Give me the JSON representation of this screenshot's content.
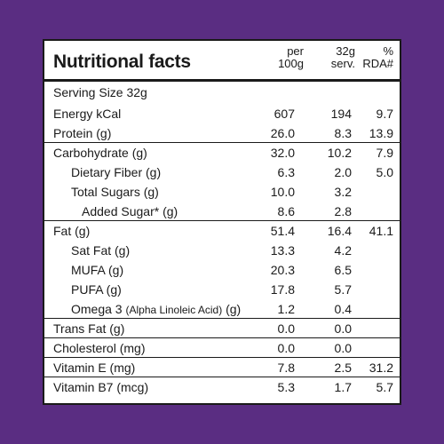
{
  "title": "Nutritional facts",
  "columns": {
    "per100g_line1": "per",
    "per100g_line2": "100g",
    "serving_line1": "32g",
    "serving_line2": "serv.",
    "rda_line1": "%",
    "rda_line2": "RDA#"
  },
  "serving_size": "Serving Size 32g",
  "rows": [
    {
      "label": "Energy kCal",
      "per100": "607",
      "serving": "194",
      "rda": "9.7"
    },
    {
      "label": "Protein (g)",
      "per100": "26.0",
      "serving": "8.3",
      "rda": "13.9"
    },
    {
      "label": "Carbohydrate (g)",
      "per100": "32.0",
      "serving": "10.2",
      "rda": "7.9"
    },
    {
      "label": "Dietary Fiber (g)",
      "per100": "6.3",
      "serving": "2.0",
      "rda": "5.0"
    },
    {
      "label": "Total Sugars (g)",
      "per100": "10.0",
      "serving": "3.2",
      "rda": ""
    },
    {
      "label": "Added Sugar* (g)",
      "per100": "8.6",
      "serving": "2.8",
      "rda": ""
    },
    {
      "label": "Fat (g)",
      "per100": "51.4",
      "serving": "16.4",
      "rda": "41.1"
    },
    {
      "label": "Sat Fat (g)",
      "per100": "13.3",
      "serving": "4.2",
      "rda": ""
    },
    {
      "label": "MUFA (g)",
      "per100": "20.3",
      "serving": "6.5",
      "rda": ""
    },
    {
      "label": "PUFA (g)",
      "per100": "17.8",
      "serving": "5.7",
      "rda": ""
    },
    {
      "label_main": "Omega 3 ",
      "label_sub": "(Alpha Linoleic Acid)",
      "label_end": " (g)",
      "per100": "1.2",
      "serving": "0.4",
      "rda": ""
    },
    {
      "label": "Trans Fat (g)",
      "per100": "0.0",
      "serving": "0.0",
      "rda": ""
    },
    {
      "label": "Cholesterol (mg)",
      "per100": "0.0",
      "serving": "0.0",
      "rda": ""
    },
    {
      "label": "Vitamin E (mg)",
      "per100": "7.8",
      "serving": "2.5",
      "rda": "31.2"
    },
    {
      "label": "Vitamin B7 (mcg)",
      "per100": "5.3",
      "serving": "1.7",
      "rda": "5.7"
    }
  ]
}
